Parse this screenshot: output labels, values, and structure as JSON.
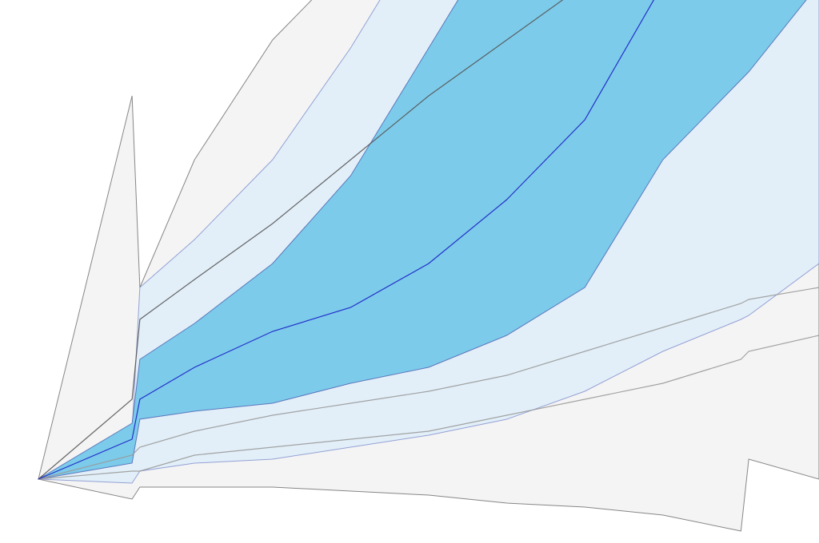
{
  "chart_data": {
    "type": "fan",
    "x": [
      0,
      12,
      13,
      20,
      30,
      40,
      50,
      60,
      70,
      80,
      90,
      91,
      100
    ],
    "xlim": [
      0,
      100
    ],
    "ylim": [
      -8,
      60
    ],
    "grid": false,
    "bands": [
      {
        "color": "#f4f4f4",
        "stroke": "#555555",
        "upper": [
          0,
          48,
          24,
          40,
          55,
          65,
          75,
          85,
          95,
          100,
          100,
          100,
          100
        ],
        "lower": [
          0,
          -2.5,
          -1,
          -1,
          -1,
          -1.5,
          -2,
          -3,
          -3.5,
          -4.5,
          -6.5,
          2.5,
          0
        ]
      },
      {
        "color": "#e2eff8",
        "stroke": "#6f7fc8",
        "upper": [
          0,
          6,
          24,
          30,
          40,
          54,
          70,
          85,
          95,
          100,
          100,
          100,
          100
        ],
        "lower": [
          0,
          -0.5,
          1,
          2,
          2.5,
          4,
          5.5,
          7.5,
          11,
          16,
          20,
          20.5,
          27
        ]
      },
      {
        "color": "#7ccbea",
        "stroke": "#3d4fa8",
        "upper": [
          0,
          7,
          15,
          19.5,
          27,
          38,
          54,
          70,
          85,
          95,
          100,
          100,
          100
        ],
        "lower": [
          0,
          2,
          7.5,
          8.5,
          9.5,
          12,
          14,
          18,
          24,
          40,
          50,
          51,
          62
        ]
      }
    ],
    "series": [
      {
        "color": "#9a9a9a",
        "values": [
          0,
          1,
          1,
          3,
          4,
          5,
          6,
          8,
          10,
          12,
          15,
          16,
          18
        ]
      },
      {
        "color": "#9a9a9a",
        "values": [
          0,
          3,
          4,
          6,
          8,
          9.5,
          11,
          13,
          16,
          19,
          22,
          22.5,
          24
        ]
      },
      {
        "color": "#555555",
        "values": [
          0,
          10,
          20,
          25,
          32,
          40,
          48,
          55,
          62,
          null,
          null,
          null,
          null
        ]
      },
      {
        "color": "#1a1fc8",
        "values": [
          0,
          5,
          10,
          14,
          18.5,
          21.5,
          27,
          35,
          45,
          62,
          null,
          null,
          null
        ]
      }
    ]
  }
}
